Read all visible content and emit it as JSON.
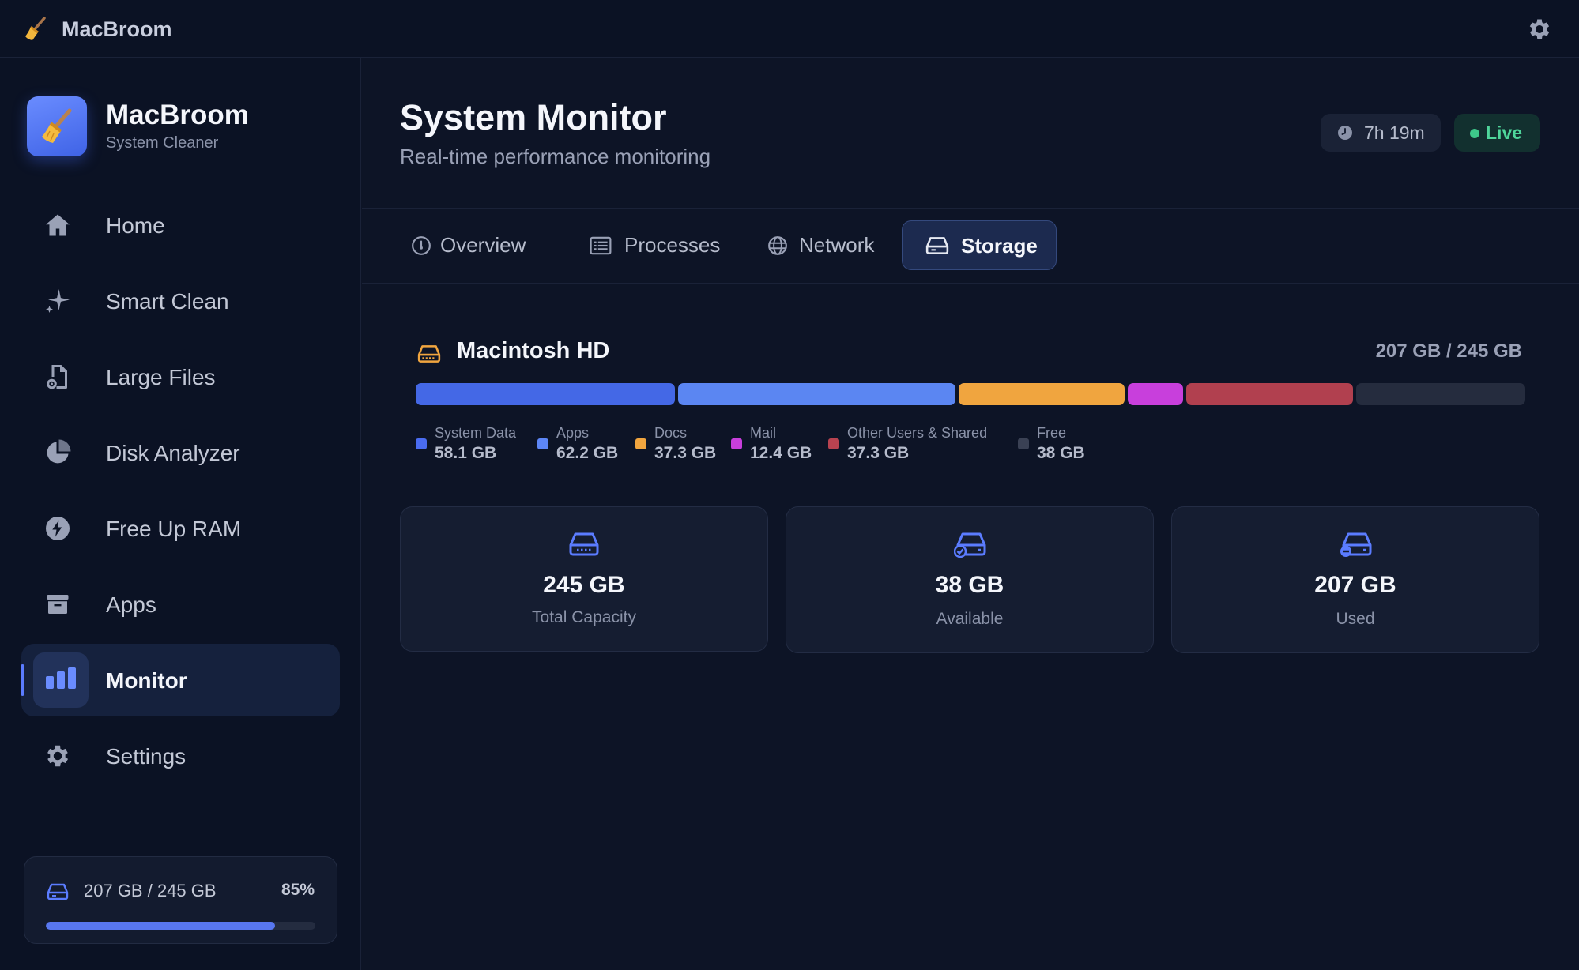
{
  "titlebar": {
    "app_name": "MacBroom",
    "icons": {
      "app": "broom-icon",
      "settings": "gear-icon"
    }
  },
  "sidebar": {
    "brand": {
      "title": "MacBroom",
      "subtitle": "System Cleaner",
      "icon": "broom-icon"
    },
    "items": [
      {
        "label": "Home",
        "icon": "house-icon",
        "active": false
      },
      {
        "label": "Smart Clean",
        "icon": "sparkles-icon",
        "active": false
      },
      {
        "label": "Large Files",
        "icon": "document-gear-icon",
        "active": false
      },
      {
        "label": "Disk Analyzer",
        "icon": "pie-chart-icon",
        "active": false
      },
      {
        "label": "Free Up RAM",
        "icon": "bolt-icon",
        "active": false
      },
      {
        "label": "Apps",
        "icon": "archive-box-icon",
        "active": false
      },
      {
        "label": "Monitor",
        "icon": "bar-chart-icon",
        "active": true
      },
      {
        "label": "Settings",
        "icon": "gear-icon",
        "active": false
      }
    ],
    "storage": {
      "text": "207 GB / 245 GB",
      "percent_label": "85%",
      "percent": 85,
      "icon": "hard-drive-icon"
    }
  },
  "header": {
    "title": "System Monitor",
    "subtitle": "Real-time performance monitoring",
    "uptime": "7h 19m",
    "status": "Live"
  },
  "tabs": [
    {
      "label": "Overview",
      "icon": "gauge-icon",
      "active": false
    },
    {
      "label": "Processes",
      "icon": "list-icon",
      "active": false
    },
    {
      "label": "Network",
      "icon": "globe-icon",
      "active": false
    },
    {
      "label": "Storage",
      "icon": "hard-drive-icon",
      "active": true
    }
  ],
  "disk": {
    "name": "Macintosh HD",
    "usage": "207 GB / 245 GB",
    "icon": "hard-drive-icon"
  },
  "chart_data": {
    "type": "bar",
    "stacked": true,
    "categories": [
      "System Data",
      "Apps",
      "Docs",
      "Mail",
      "Other Users & Shared",
      "Free"
    ],
    "values": [
      58.1,
      62.2,
      37.3,
      12.4,
      37.3,
      38
    ],
    "unit": "GB",
    "value_labels": [
      "58.1 GB",
      "62.2 GB",
      "37.3 GB",
      "12.4 GB",
      "37.3 GB",
      "38 GB"
    ],
    "colors": [
      "#4468e6",
      "#5b86f2",
      "#f0a53f",
      "#c83fdc",
      "#b1404f",
      "#252c3e"
    ],
    "legend_colors": [
      "#4a6cf0",
      "#5d86f5",
      "#f0a53f",
      "#c83fdc",
      "#b84350",
      "#3a4154"
    ]
  },
  "stats": [
    {
      "value": "245 GB",
      "label": "Total Capacity",
      "icon": "hard-drive-icon"
    },
    {
      "value": "38 GB",
      "label": "Available",
      "icon": "drive-check-icon"
    },
    {
      "value": "207 GB",
      "label": "Used",
      "icon": "drive-minus-icon"
    }
  ],
  "colors": {
    "accent": "#5b7cff",
    "live": "#4fd69b",
    "background": "#0d1426"
  }
}
